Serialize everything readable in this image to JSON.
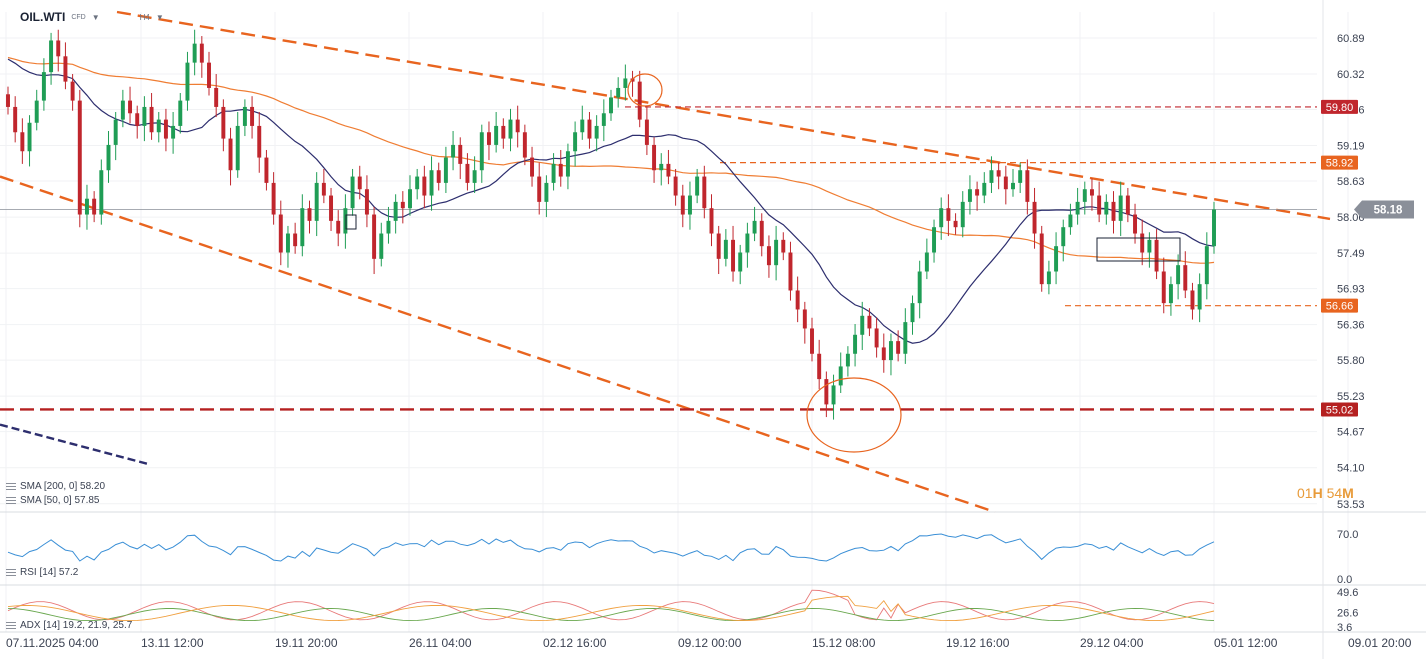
{
  "header": {
    "symbol": "OIL.WTI",
    "symbol_type": "CFD",
    "timeframe": "H4"
  },
  "timer": {
    "hours": "01",
    "hours_unit": "H",
    "minutes": "54",
    "minutes_unit": "M"
  },
  "colors": {
    "bull": "#1f9d55",
    "bear": "#c0262d",
    "sma200": "#ef7d33",
    "sma50": "#2d2e6e",
    "trendline": "#e8641f",
    "support": "#b52020",
    "rsi": "#3a8fd6",
    "adx": "#e87a7a",
    "di_plus": "#6aa84f",
    "di_minus": "#f0a040",
    "current_price_badge": "#8a8f99"
  },
  "indicators": {
    "sma200": {
      "label": "SMA [200, 0] 58.20"
    },
    "sma50": {
      "label": "SMA [50, 0] 57.85"
    },
    "rsi": {
      "label": "RSI [14] 57.2",
      "value": 57.2
    },
    "adx": {
      "label": "ADX [14] 19.2, 21.9, 25.7",
      "values": [
        19.2,
        21.9,
        25.7
      ]
    }
  },
  "chart_data": [
    {
      "type": "candlestick",
      "symbol": "OIL.WTI",
      "timeframe": "H4",
      "y_ticks": [
        "60.89",
        "60.32",
        "59.76",
        "59.19",
        "58.63",
        "58.06",
        "57.49",
        "56.93",
        "56.36",
        "55.80",
        "55.23",
        "54.67",
        "54.10",
        "53.53"
      ],
      "ylim": [
        53.4,
        61.3
      ],
      "x_ticks": [
        "07.11.2025 04:00",
        "13.11 12:00",
        "19.11 20:00",
        "26.11 04:00",
        "02.12 16:00",
        "09.12 00:00",
        "15.12 08:00",
        "19.12 16:00",
        "29.12 04:00",
        "05.01 12:00",
        "09.01 20:00"
      ],
      "levels": [
        {
          "value": 59.8,
          "label": "59.80",
          "style": "dashed",
          "color": "#c0262d"
        },
        {
          "value": 58.92,
          "label": "58.92",
          "style": "dashed",
          "color": "#e8641f"
        },
        {
          "value": 56.66,
          "label": "56.66",
          "style": "dashed",
          "color": "#e8641f"
        },
        {
          "value": 55.02,
          "label": "55.02",
          "style": "dashed-bold",
          "color": "#b52020"
        }
      ],
      "current_price": {
        "value": 58.18,
        "label": "58.18"
      },
      "series_close": [
        59.8,
        59.4,
        59.1,
        59.55,
        59.9,
        60.35,
        60.85,
        60.6,
        60.2,
        59.9,
        58.1,
        58.35,
        58.1,
        58.8,
        59.2,
        59.6,
        59.9,
        59.7,
        59.5,
        59.8,
        59.4,
        59.6,
        59.3,
        59.5,
        59.9,
        60.5,
        60.8,
        60.5,
        60.1,
        59.8,
        59.3,
        58.8,
        59.5,
        59.8,
        59.5,
        59.0,
        58.6,
        58.1,
        57.5,
        57.8,
        57.6,
        58.2,
        58.0,
        58.6,
        58.4,
        58.0,
        57.8,
        58.2,
        58.7,
        58.5,
        58.1,
        57.4,
        57.8,
        58.0,
        58.3,
        58.2,
        58.5,
        58.7,
        58.4,
        58.8,
        58.6,
        59.0,
        59.2,
        58.9,
        58.6,
        58.8,
        59.4,
        59.2,
        59.5,
        59.3,
        59.6,
        59.4,
        59.0,
        58.7,
        58.3,
        58.6,
        58.9,
        58.7,
        59.1,
        59.4,
        59.6,
        59.3,
        59.5,
        59.7,
        59.95,
        60.1,
        60.25,
        60.2,
        59.6,
        59.2,
        58.8,
        58.9,
        58.7,
        58.4,
        58.1,
        58.4,
        58.7,
        58.2,
        57.8,
        57.4,
        57.7,
        57.2,
        57.5,
        57.8,
        58.0,
        57.6,
        57.3,
        57.7,
        57.5,
        56.9,
        56.6,
        56.3,
        55.9,
        55.5,
        55.1,
        55.4,
        55.7,
        55.9,
        56.2,
        56.5,
        56.3,
        56.0,
        55.8,
        56.1,
        55.9,
        56.4,
        56.7,
        57.2,
        57.5,
        57.9,
        58.2,
        58.0,
        57.9,
        58.3,
        58.5,
        58.4,
        58.6,
        58.8,
        58.7,
        58.5,
        58.6,
        58.8,
        58.3,
        57.8,
        57.0,
        57.2,
        57.6,
        57.9,
        58.1,
        58.3,
        58.5,
        58.4,
        58.1,
        58.3,
        58.0,
        58.4,
        58.1,
        57.8,
        57.5,
        57.7,
        57.2,
        56.7,
        57.0,
        57.3,
        56.9,
        56.6,
        57.0,
        57.6,
        58.18
      ]
    },
    {
      "type": "line",
      "name": "RSI [14]",
      "ylim": [
        0,
        70
      ],
      "y_ticks": [
        "70.0",
        "0.0"
      ]
    },
    {
      "type": "line",
      "name": "ADX [14]",
      "y_ticks": [
        "49.6",
        "26.6",
        "3.6"
      ]
    }
  ]
}
